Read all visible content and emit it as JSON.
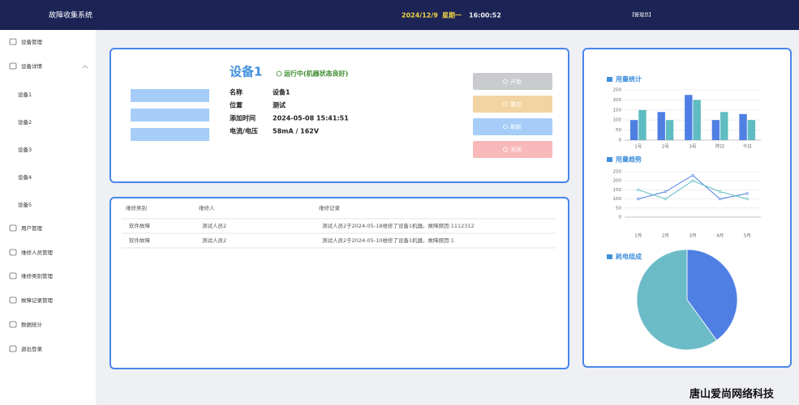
{
  "header": {
    "title": "故障收集系统",
    "date": "2024/12/9",
    "weekday": "星期一",
    "time": "16:00:52",
    "user": "【管理员】"
  },
  "sidebar": {
    "items": [
      "设备管理",
      "设备详情",
      "设备1",
      "设备2",
      "设备3",
      "设备4",
      "设备5",
      "用户管理",
      "维修人员管理",
      "维修类别管理",
      "故障记录管理",
      "数据统计",
      "退出登录"
    ]
  },
  "device": {
    "name": "设备1",
    "status": "运行中(机器状态良好)",
    "fields": [
      {
        "label": "名称",
        "value": "设备1"
      },
      {
        "label": "位置",
        "value": "测试"
      },
      {
        "label": "添加时间",
        "value": "2024-05-08 15:41:51"
      },
      {
        "label": "电流/电压",
        "value": "58mA / 162V"
      }
    ],
    "buttons": [
      "开始",
      "重启",
      "刷新",
      "关闭"
    ]
  },
  "table": {
    "headers": [
      "维修类别",
      "维修人",
      "维修记录"
    ],
    "rows": [
      [
        "软件故障",
        "测试人员2",
        "测试人员2于2024-05-18维修了设备1机器。故障原因:1112312"
      ],
      [
        "软件故障",
        "测试人员2",
        "测试人员2于2024-05-10维修了设备1机器，故障原因:1"
      ]
    ]
  },
  "chart_data": [
    {
      "type": "bar",
      "title": "用量统计",
      "categories": [
        "1号",
        "2号",
        "3号",
        "昨日",
        "今日"
      ],
      "series": [
        {
          "color": "#4f7fe3",
          "values": [
            100,
            140,
            225,
            100,
            130
          ]
        },
        {
          "color": "#5ebcc2",
          "values": [
            150,
            100,
            200,
            140,
            100
          ]
        }
      ],
      "ylim": [
        0,
        250
      ],
      "yticks": [
        0,
        50,
        100,
        150,
        200,
        250
      ],
      "grid": true
    },
    {
      "type": "line",
      "title": "用量趋势",
      "categories": [
        "1月",
        "2月",
        "3月",
        "4月",
        "5月"
      ],
      "series": [
        {
          "color": "#4f7fe3",
          "values": [
            100,
            140,
            230,
            100,
            130
          ]
        },
        {
          "color": "#5ebcc2",
          "values": [
            150,
            100,
            200,
            140,
            100
          ]
        }
      ],
      "ylim": [
        0,
        250
      ],
      "yticks": [
        0,
        50,
        100,
        150,
        200,
        250
      ],
      "grid": true
    },
    {
      "type": "pie",
      "title": "耗电组成",
      "values": [
        40,
        60
      ],
      "colors": [
        "#4f7fe3",
        "#6cbcc8"
      ]
    }
  ],
  "watermark": "唐山爱尚网络科技"
}
